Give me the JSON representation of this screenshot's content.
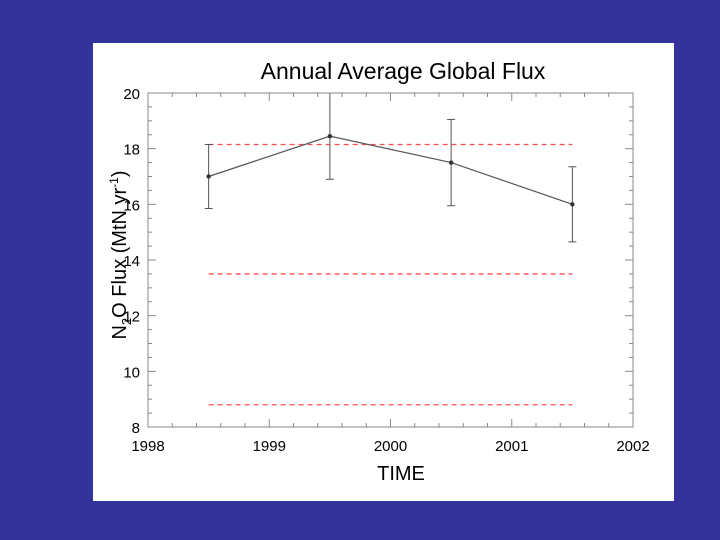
{
  "colors": {
    "background": "#333399",
    "panel": "#ffffff",
    "series_line": "#555555",
    "reference_line": "#ff4d4d"
  },
  "chart_data": {
    "type": "line",
    "title": "Annual Average Global Flux",
    "xlabel": "TIME",
    "ylabel": {
      "prefix": "N",
      "subscript": "2",
      "middle": "O Flux (MtN yr",
      "superscript": "-1",
      "suffix": ")"
    },
    "xlim": [
      1998,
      2002
    ],
    "ylim": [
      8,
      20
    ],
    "x_ticks": [
      "1998",
      "1999",
      "2000",
      "2001",
      "2002"
    ],
    "y_ticks": [
      "8",
      "10",
      "12",
      "14",
      "16",
      "18",
      "20"
    ],
    "series": [
      {
        "x": [
          1998.5,
          1999.5,
          2000.5,
          2001.5
        ],
        "y": [
          17.0,
          18.45,
          17.5,
          16.0
        ],
        "yerr_low": [
          15.85,
          16.9,
          15.95,
          14.65
        ],
        "yerr_high": [
          18.15,
          20.15,
          19.05,
          17.35
        ],
        "color": "#555555"
      }
    ],
    "reference_lines": [
      {
        "y": 18.15,
        "x_range": [
          1998.5,
          2001.5
        ],
        "style": "dashed",
        "color": "#ff4d4d"
      },
      {
        "y": 13.5,
        "x_range": [
          1998.5,
          2001.5
        ],
        "style": "dashed",
        "color": "#ff4d4d"
      },
      {
        "y": 8.8,
        "x_range": [
          1998.5,
          2001.5
        ],
        "style": "dashed",
        "color": "#ff4d4d"
      }
    ],
    "grid": false,
    "legend": "none"
  }
}
